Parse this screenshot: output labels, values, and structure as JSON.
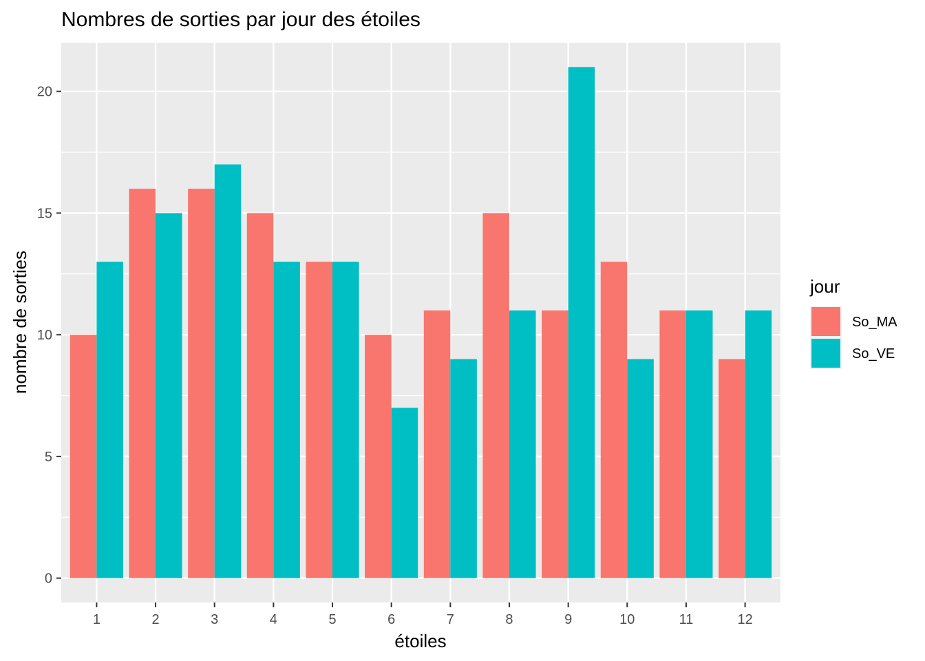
{
  "chart_data": {
    "type": "bar",
    "title": "Nombres de sorties par jour des étoiles",
    "xlabel": "étoiles",
    "ylabel": "nombre de sorties",
    "categories": [
      "1",
      "2",
      "3",
      "4",
      "5",
      "6",
      "7",
      "8",
      "9",
      "10",
      "11",
      "12"
    ],
    "series": [
      {
        "name": "So_MA",
        "color": "#F8766D",
        "values": [
          10,
          16,
          16,
          15,
          13,
          10,
          11,
          15,
          11,
          13,
          11,
          9
        ]
      },
      {
        "name": "So_VE",
        "color": "#00BFC4",
        "values": [
          13,
          15,
          17,
          13,
          13,
          7,
          9,
          11,
          21,
          9,
          11,
          11
        ]
      }
    ],
    "ylim": [
      -1,
      22
    ],
    "yticks": [
      "0",
      "5",
      "10",
      "15",
      "20"
    ],
    "grid": true,
    "panel_background": "#EBEBEB",
    "legend": {
      "title": "jour",
      "position": "right"
    }
  }
}
